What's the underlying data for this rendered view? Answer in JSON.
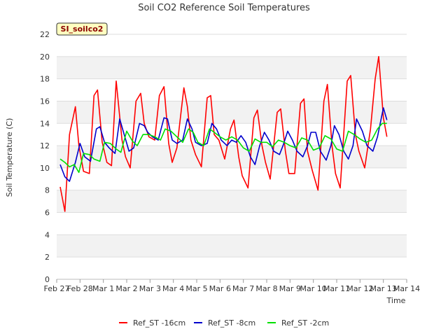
{
  "chart_data": {
    "type": "line",
    "title": "Soil CO2 Reference Soil Temperatures",
    "xlabel": "Time",
    "ylabel": "Soil Temperature (C)",
    "ylim": [
      0,
      22
    ],
    "yticks": [
      0,
      2,
      4,
      6,
      8,
      10,
      12,
      14,
      16,
      18,
      20,
      22
    ],
    "xlim": [
      0,
      15
    ],
    "xticks": [
      "Feb 27",
      "Feb 28",
      "Mar 1",
      "Mar 2",
      "Mar 3",
      "Mar 4",
      "Mar 5",
      "Mar 6",
      "Mar 7",
      "Mar 8",
      "Mar 9",
      "Mar 10",
      "Mar 11",
      "Mar 12",
      "Mar 13",
      "Mar 14"
    ],
    "badge": "SI_soilco2",
    "grid": "alternating horizontal bands",
    "legend_position": "bottom-center",
    "series": [
      {
        "name": "Ref_ST -16cm",
        "color": "#ff0000",
        "x": [
          0.15,
          0.35,
          0.55,
          0.8,
          0.95,
          1.15,
          1.4,
          1.6,
          1.75,
          1.95,
          2.15,
          2.35,
          2.55,
          2.8,
          2.95,
          3.15,
          3.4,
          3.6,
          3.75,
          3.95,
          4.2,
          4.4,
          4.6,
          4.8,
          4.95,
          5.15,
          5.45,
          5.6,
          5.75,
          5.95,
          6.2,
          6.45,
          6.6,
          6.75,
          6.95,
          7.2,
          7.45,
          7.6,
          7.8,
          7.95,
          8.2,
          8.45,
          8.6,
          8.8,
          8.95,
          9.15,
          9.45,
          9.6,
          9.8,
          9.95,
          10.2,
          10.45,
          10.6,
          10.75,
          10.95,
          11.2,
          11.45,
          11.6,
          11.8,
          11.95,
          12.15,
          12.45,
          12.6,
          12.8,
          12.95,
          13.2,
          13.45,
          13.65,
          13.8,
          14.0,
          14.15
        ],
        "y": [
          8.3,
          6.1,
          13.0,
          15.5,
          12.0,
          9.7,
          9.5,
          16.5,
          17.0,
          12.3,
          10.5,
          10.2,
          17.8,
          12.5,
          11.0,
          10.0,
          16.0,
          16.7,
          14.0,
          12.8,
          12.5,
          16.5,
          17.3,
          12.2,
          10.5,
          11.8,
          17.2,
          15.5,
          12.5,
          11.2,
          10.1,
          16.3,
          16.5,
          13.0,
          12.5,
          10.8,
          13.5,
          14.3,
          11.0,
          9.3,
          8.2,
          14.5,
          15.2,
          12.0,
          10.5,
          9.0,
          15.0,
          15.3,
          11.5,
          9.5,
          9.5,
          15.8,
          16.2,
          11.5,
          9.8,
          8.0,
          16.0,
          17.5,
          12.0,
          9.5,
          8.2,
          17.8,
          18.3,
          13.0,
          11.5,
          10.0,
          13.5,
          18.0,
          20.0,
          14.5,
          12.8
        ]
      },
      {
        "name": "Ref_ST -8cm",
        "color": "#0000cc",
        "x": [
          0.15,
          0.35,
          0.55,
          0.8,
          1.0,
          1.2,
          1.45,
          1.7,
          1.85,
          2.05,
          2.25,
          2.5,
          2.7,
          2.85,
          3.1,
          3.3,
          3.55,
          3.75,
          3.9,
          4.1,
          4.35,
          4.6,
          4.75,
          4.95,
          5.15,
          5.4,
          5.6,
          5.8,
          5.95,
          6.2,
          6.45,
          6.65,
          6.85,
          7.05,
          7.3,
          7.5,
          7.7,
          7.9,
          8.1,
          8.3,
          8.5,
          8.7,
          8.9,
          9.1,
          9.3,
          9.55,
          9.7,
          9.9,
          10.1,
          10.3,
          10.55,
          10.75,
          10.9,
          11.1,
          11.3,
          11.55,
          11.75,
          11.9,
          12.1,
          12.3,
          12.5,
          12.7,
          12.85,
          13.1,
          13.3,
          13.55,
          13.75,
          14.0,
          14.15
        ],
        "y": [
          10.3,
          9.2,
          8.8,
          10.5,
          12.2,
          11.0,
          10.6,
          13.5,
          13.7,
          12.3,
          11.8,
          11.3,
          14.4,
          13.3,
          11.5,
          11.8,
          14.0,
          13.8,
          13.2,
          12.8,
          12.5,
          14.5,
          14.4,
          12.5,
          12.2,
          12.5,
          14.4,
          13.5,
          12.3,
          12.0,
          12.2,
          14.0,
          13.5,
          12.5,
          12.0,
          12.5,
          12.3,
          12.9,
          12.3,
          11.0,
          10.3,
          12.0,
          13.2,
          12.5,
          11.5,
          11.2,
          12.0,
          13.3,
          12.5,
          11.5,
          11.0,
          12.0,
          13.2,
          13.2,
          11.5,
          10.7,
          12.0,
          13.8,
          13.0,
          11.5,
          10.8,
          12.0,
          14.4,
          13.3,
          12.0,
          11.5,
          12.8,
          15.4,
          14.3
        ]
      },
      {
        "name": "Ref_ST -2cm",
        "color": "#00e000",
        "x": [
          0.15,
          0.35,
          0.55,
          0.75,
          0.95,
          1.15,
          1.4,
          1.6,
          1.85,
          2.05,
          2.3,
          2.55,
          2.75,
          3.0,
          3.25,
          3.45,
          3.7,
          3.95,
          4.2,
          4.45,
          4.65,
          4.9,
          5.15,
          5.4,
          5.65,
          5.85,
          6.05,
          6.3,
          6.55,
          6.75,
          7.0,
          7.25,
          7.5,
          7.75,
          8.0,
          8.25,
          8.5,
          8.75,
          9.0,
          9.25,
          9.5,
          9.75,
          10.0,
          10.25,
          10.5,
          10.75,
          11.0,
          11.25,
          11.5,
          11.75,
          12.0,
          12.25,
          12.5,
          12.75,
          13.0,
          13.25,
          13.5,
          13.75,
          13.95,
          14.15
        ],
        "y": [
          10.8,
          10.5,
          10.1,
          10.3,
          9.6,
          11.3,
          11.2,
          10.8,
          10.6,
          12.3,
          12.2,
          11.7,
          11.4,
          13.3,
          12.4,
          12.0,
          13.0,
          13.0,
          12.8,
          12.5,
          13.5,
          13.3,
          12.8,
          12.3,
          13.5,
          13.2,
          12.3,
          12.0,
          13.5,
          13.2,
          12.8,
          12.5,
          12.8,
          12.5,
          11.8,
          11.5,
          12.6,
          12.3,
          12.3,
          11.9,
          12.5,
          12.3,
          12.0,
          11.8,
          12.7,
          12.5,
          11.6,
          11.8,
          12.9,
          12.6,
          11.7,
          11.5,
          13.3,
          13.0,
          12.6,
          12.3,
          12.5,
          13.5,
          14.0,
          14.0
        ]
      }
    ]
  }
}
